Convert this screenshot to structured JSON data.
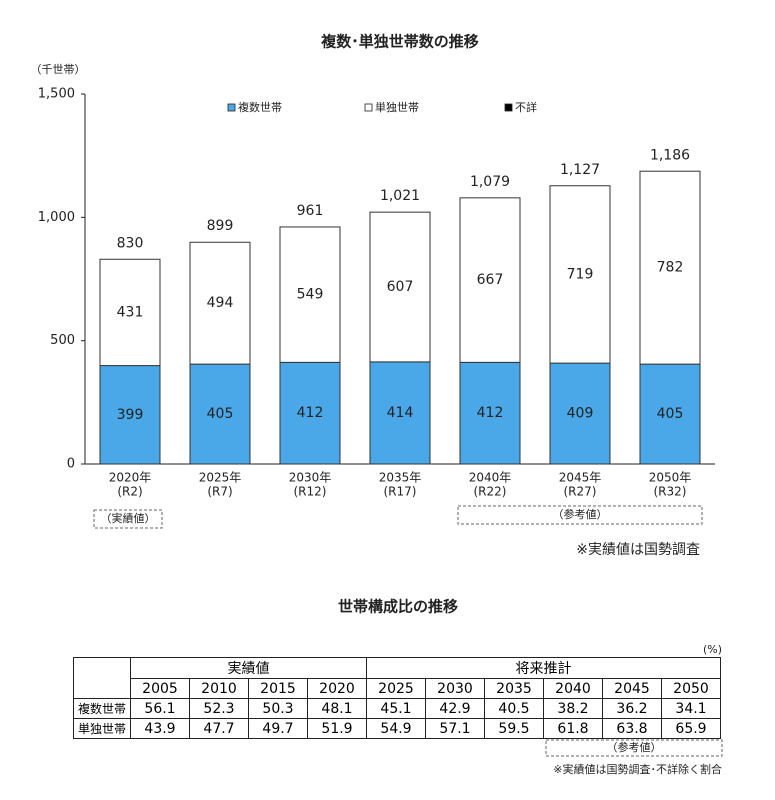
{
  "chart_data": {
    "type": "stacked_bar",
    "title": "複数･単独世帯数の推移",
    "y_label": "（千世帯）",
    "categories": [
      [
        "2020年",
        "(R2)"
      ],
      [
        "2025年",
        "(R7)"
      ],
      [
        "2030年",
        "(R12)"
      ],
      [
        "2035年",
        "(R17)"
      ],
      [
        "2040年",
        "(R22)"
      ],
      [
        "2045年",
        "(R27)"
      ],
      [
        "2050年",
        "(R32)"
      ]
    ],
    "series": [
      {
        "name": "複数世帯",
        "color": "#4aa8e8",
        "values": [
          399,
          405,
          412,
          414,
          412,
          409,
          405
        ]
      },
      {
        "name": "単独世帯",
        "color": "#ffffff",
        "values": [
          431,
          494,
          549,
          607,
          667,
          719,
          782
        ]
      },
      {
        "name": "不詳",
        "color": "#000000",
        "values": [
          0,
          0,
          0,
          0,
          0,
          0,
          0
        ]
      }
    ],
    "totals": {
      "values": [
        830,
        899,
        961,
        1021,
        1079,
        1127,
        1186
      ],
      "value_labels": [
        "830",
        "899",
        "961",
        "1,021",
        "1,079",
        "1,127",
        "1,186"
      ]
    },
    "ylim": [
      0,
      1500
    ],
    "yticks": [
      0,
      500,
      {
        "value": 1000,
        "label": "1,000"
      },
      {
        "value": 1500,
        "label": "1,500"
      }
    ],
    "legend": "top",
    "annotations": [
      "（実績値）",
      "（参考値）",
      "※実績値は国勢調査"
    ]
  },
  "table": {
    "title": "世帯構成比の推移",
    "unit": "(%)",
    "groups": [
      "実績値",
      "将来推計"
    ],
    "years": [
      "2005",
      "2010",
      "2015",
      "2020",
      "2025",
      "2030",
      "2035",
      "2040",
      "2045",
      "2050"
    ],
    "rows": [
      {
        "label": "複数世帯",
        "values": [
          56.1,
          52.3,
          50.3,
          48.1,
          45.1,
          42.9,
          40.5,
          38.2,
          36.2,
          34.1
        ]
      },
      {
        "label": "単独世帯",
        "values": [
          43.9,
          47.7,
          49.7,
          51.9,
          54.9,
          57.1,
          59.5,
          61.8,
          63.8,
          65.9
        ]
      }
    ],
    "notes": [
      "（参考値）",
      "※実績値は国勢調査･不詳除く割合"
    ]
  }
}
